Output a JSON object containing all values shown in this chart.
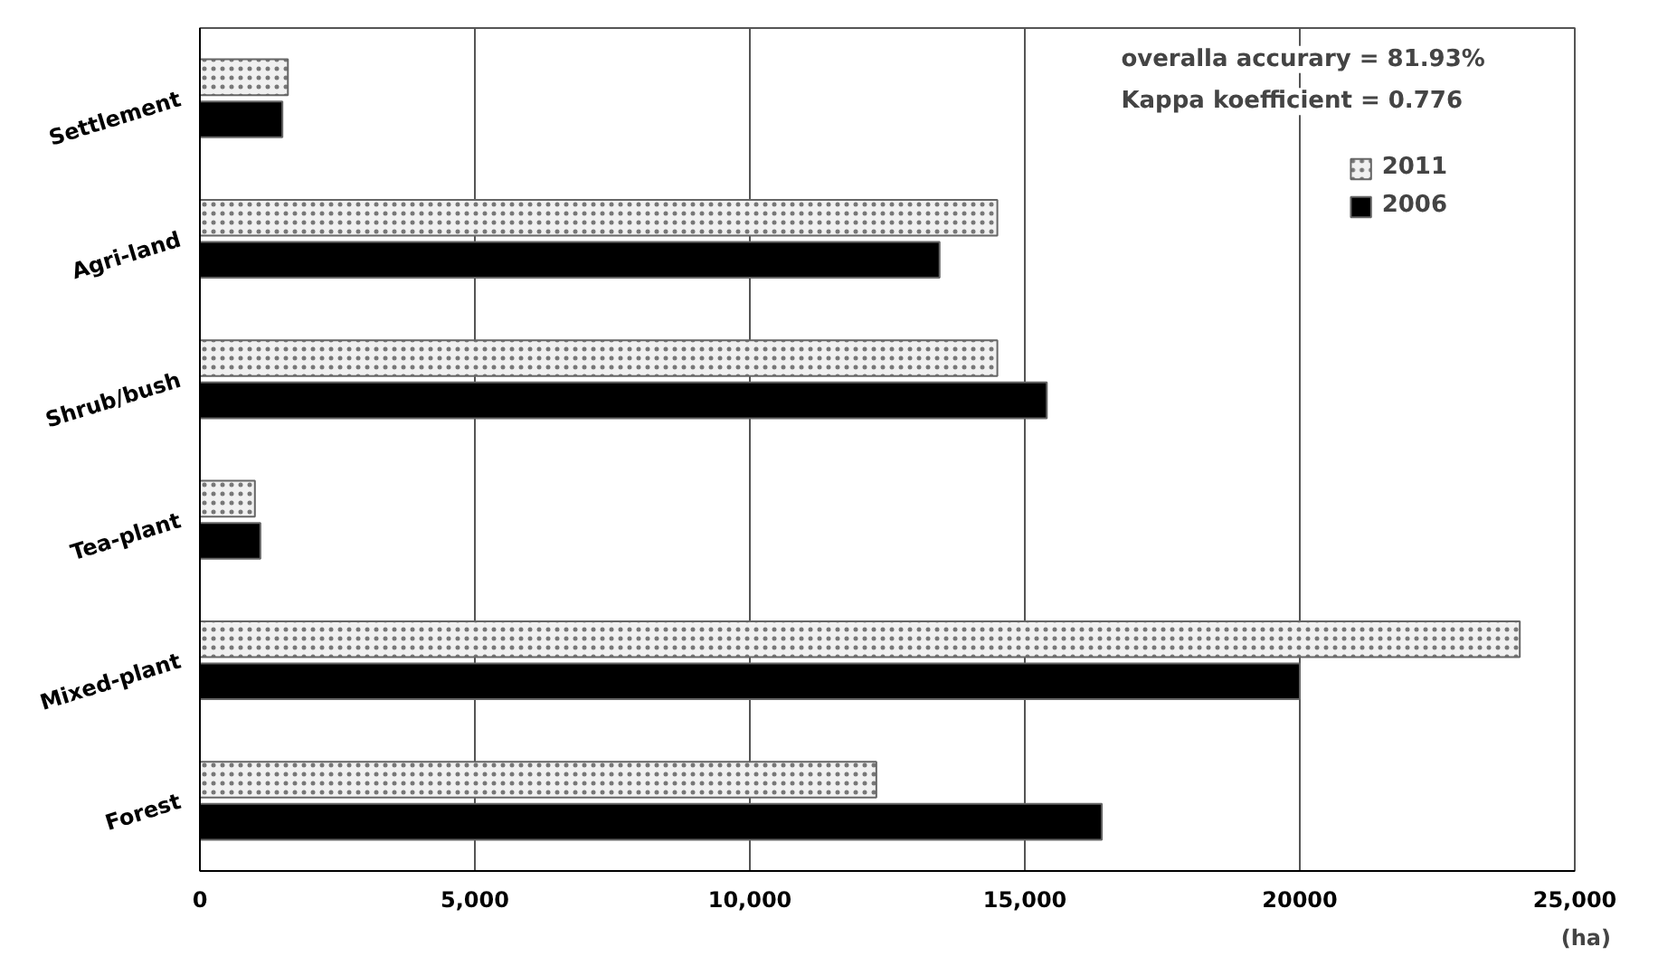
{
  "chart_data": {
    "type": "bar",
    "orientation": "horizontal",
    "xlabel": "(ha)",
    "categories": [
      "Settlement",
      "Agri-land",
      "Shrub/bush",
      "Tea-plant",
      "Mixed-plant",
      "Forest"
    ],
    "series": [
      {
        "name": "2011",
        "color": "#f0f0f0",
        "values": [
          1600,
          14500,
          14500,
          1000,
          24000,
          12300
        ]
      },
      {
        "name": "2006",
        "color": "#000000",
        "values": [
          1500,
          13450,
          15400,
          1100,
          20000,
          16400
        ]
      }
    ],
    "xlim": [
      0,
      25000
    ],
    "xticks": [
      0,
      {
        "value": 5000,
        "label": "5,000"
      },
      {
        "value": 10000,
        "label": "10,000"
      },
      {
        "value": 15000,
        "label": "15,000"
      },
      20000,
      {
        "value": 25000,
        "label": "25,000"
      }
    ],
    "grid": "x",
    "legend": "top right",
    "annotations": [
      "overalla accurary = 81.93%",
      "Kappa koefficient  = 0.776"
    ]
  }
}
